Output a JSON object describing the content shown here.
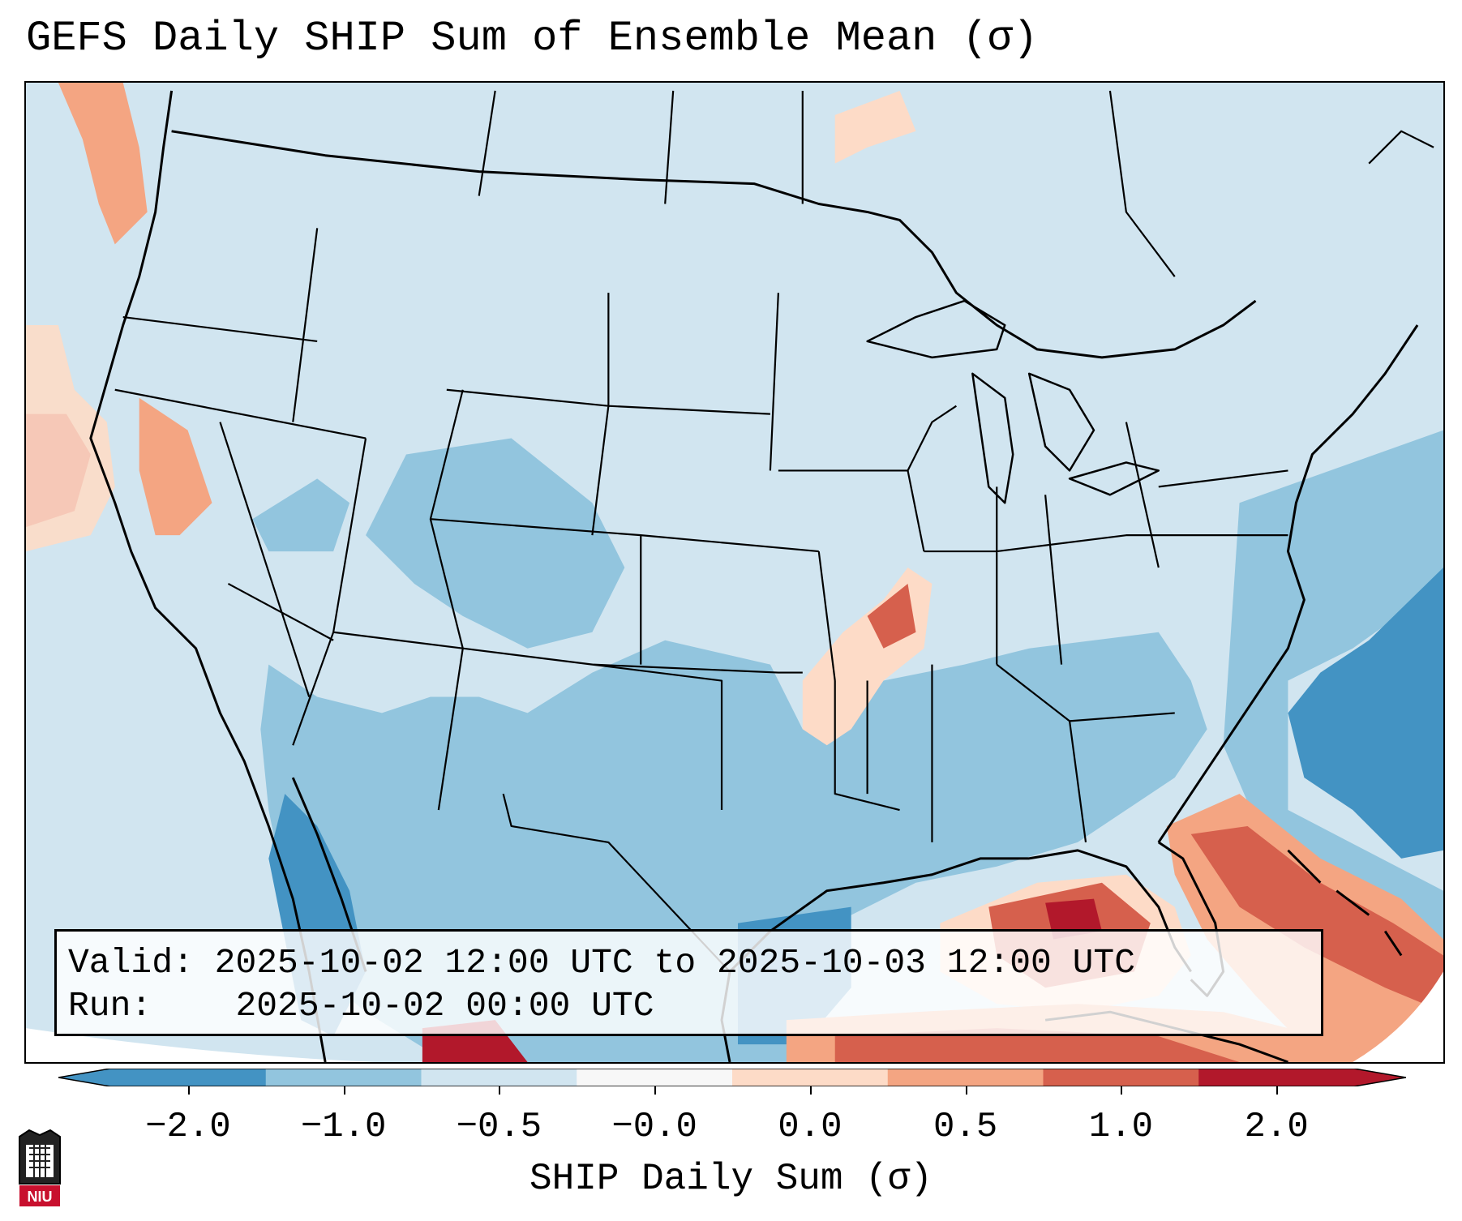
{
  "title": "GEFS Daily SHIP Sum of Ensemble Mean (σ)",
  "info": {
    "valid_label": "Valid:",
    "valid_value": "2025-10-02 12:00 UTC to 2025-10-03 12:00 UTC",
    "run_label": "Run:",
    "run_value": "2025-10-02 00:00 UTC"
  },
  "colorbar": {
    "label": "SHIP Daily Sum (σ)",
    "ticks": [
      "−2.0",
      "−1.0",
      "−0.5",
      "−0.0",
      "0.0",
      "0.5",
      "1.0",
      "2.0"
    ],
    "colors": [
      "#4393c3",
      "#92c5de",
      "#d1e5f0",
      "#f7f7f7",
      "#fddbc7",
      "#f4a582",
      "#d6604d",
      "#b2182b"
    ],
    "extend": "both"
  },
  "logo": {
    "name": "NIU",
    "text": "NIU"
  },
  "map": {
    "background_color": "#d1e5f0",
    "projection": "Lambert Conformal",
    "region": "Contiguous United States",
    "features": [
      "state-borders",
      "coastlines",
      "great-lakes"
    ]
  }
}
